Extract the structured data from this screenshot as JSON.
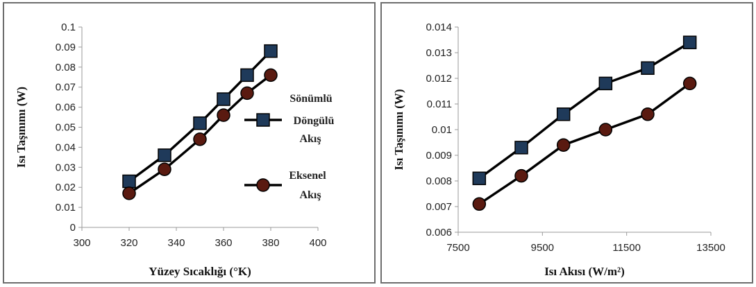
{
  "chart_data": [
    {
      "type": "line",
      "xlabel": "Yüzey Sıcaklığı (°K)",
      "ylabel": "Isı Taşınımı (W)",
      "xlim": [
        300,
        400
      ],
      "ylim": [
        0,
        0.1
      ],
      "xticks": [
        "300",
        "320",
        "340",
        "360",
        "380",
        "400"
      ],
      "yticks": [
        "0",
        "0.01",
        "0.02",
        "0.03",
        "0.04",
        "0.05",
        "0.06",
        "0.07",
        "0.08",
        "0.09",
        "0.1"
      ],
      "grid": false,
      "legend_position": "right",
      "series": [
        {
          "name": "Sönümlü Döngülü Akış",
          "legend_lines": [
            "Sönümlü",
            "Döngülü",
            "Akış"
          ],
          "marker": "square",
          "color": "#1f3a5a",
          "x": [
            320,
            335,
            350,
            360,
            370,
            380
          ],
          "values": [
            0.023,
            0.036,
            0.052,
            0.064,
            0.076,
            0.088
          ]
        },
        {
          "name": "Eksenel Akış",
          "legend_lines": [
            "Eksenel",
            "Akış"
          ],
          "marker": "circle",
          "color": "#5a1a10",
          "x": [
            320,
            335,
            350,
            360,
            370,
            380
          ],
          "values": [
            0.017,
            0.029,
            0.044,
            0.056,
            0.067,
            0.076
          ]
        }
      ]
    },
    {
      "type": "line",
      "xlabel": "Isı Akısı (W/m²)",
      "ylabel": "Isı Taşınımı (W)",
      "xlim": [
        7500,
        13500
      ],
      "ylim": [
        0.006,
        0.014
      ],
      "xticks": [
        "7500",
        "9500",
        "11500",
        "13500"
      ],
      "yticks": [
        "0.006",
        "0.007",
        "0.008",
        "0.009",
        "0.01",
        "0.011",
        "0.012",
        "0.013",
        "0.014"
      ],
      "grid": false,
      "series": [
        {
          "marker": "square",
          "color": "#1f3a5a",
          "x": [
            8000,
            9000,
            10000,
            11000,
            12000,
            13000
          ],
          "values": [
            0.0081,
            0.0093,
            0.0106,
            0.0118,
            0.0124,
            0.0134
          ]
        },
        {
          "marker": "circle",
          "color": "#5a1a10",
          "x": [
            8000,
            9000,
            10000,
            11000,
            12000,
            13000
          ],
          "values": [
            0.0071,
            0.0082,
            0.0094,
            0.01,
            0.0106,
            0.0118
          ]
        }
      ]
    }
  ]
}
